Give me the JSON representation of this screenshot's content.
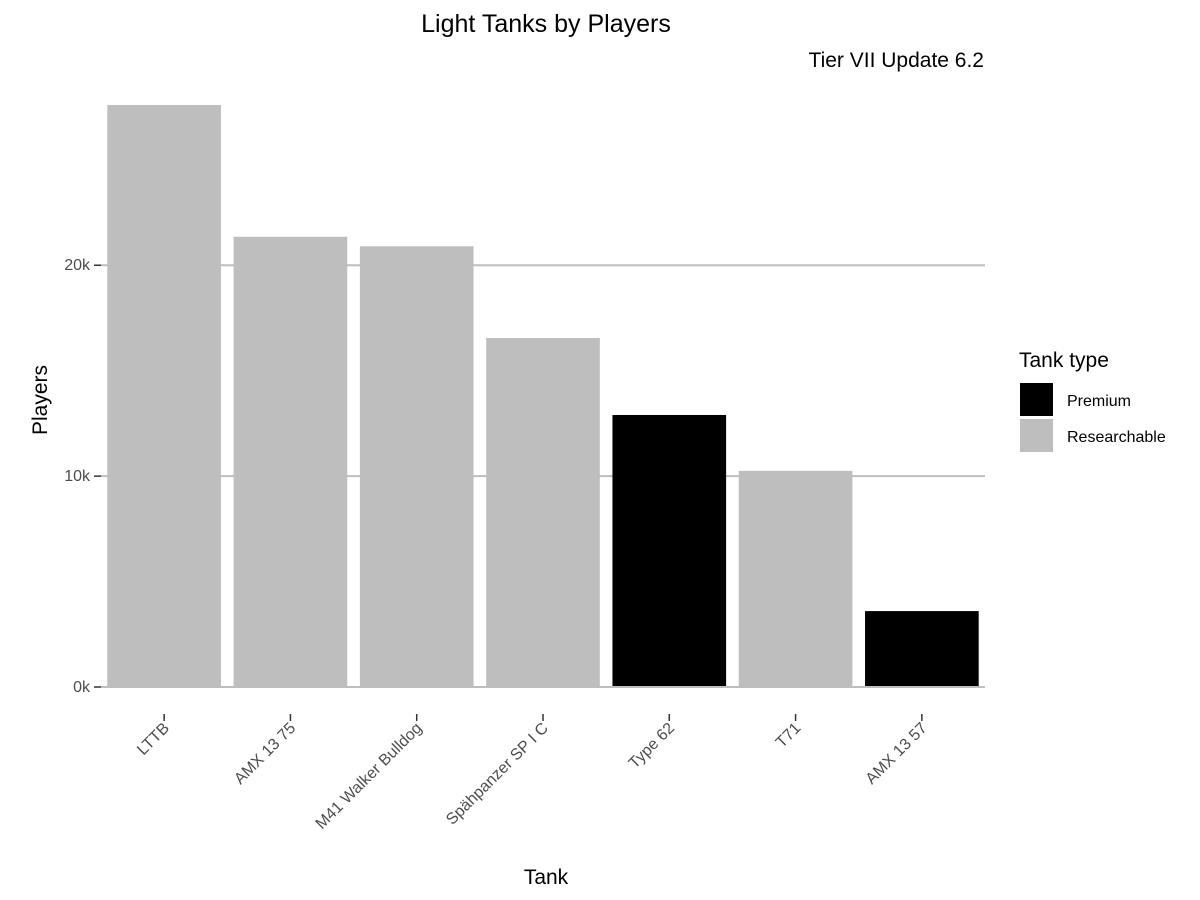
{
  "chart_data": {
    "type": "bar",
    "title": "Light Tanks by Players",
    "subtitle": "Tier VII Update 6.2",
    "xlabel": "Tank",
    "ylabel": "Players",
    "categories": [
      "LTTB",
      "AMX 13 75",
      "M41 Walker Bulldog",
      "Spähpanzer SP I C",
      "Type 62",
      "T71",
      "AMX 13 57"
    ],
    "values": [
      27600,
      21350,
      20900,
      16550,
      12900,
      10250,
      3600
    ],
    "bar_types": [
      "Researchable",
      "Researchable",
      "Researchable",
      "Researchable",
      "Premium",
      "Researchable",
      "Premium"
    ],
    "ylim": [
      0,
      28500
    ],
    "yticks": [
      0,
      10000,
      20000
    ],
    "ytick_labels": [
      "0k",
      "10k",
      "20k"
    ],
    "grid": "horizontal-major",
    "legend": {
      "title": "Tank type",
      "placement": "right",
      "entries": [
        {
          "label": "Premium",
          "color": "#000000"
        },
        {
          "label": "Researchable",
          "color": "#bebebe"
        }
      ]
    },
    "colors": {
      "Premium": "#000000",
      "Researchable": "#bebebe",
      "grid": "#bebebe",
      "axis": "#bebebe"
    }
  }
}
